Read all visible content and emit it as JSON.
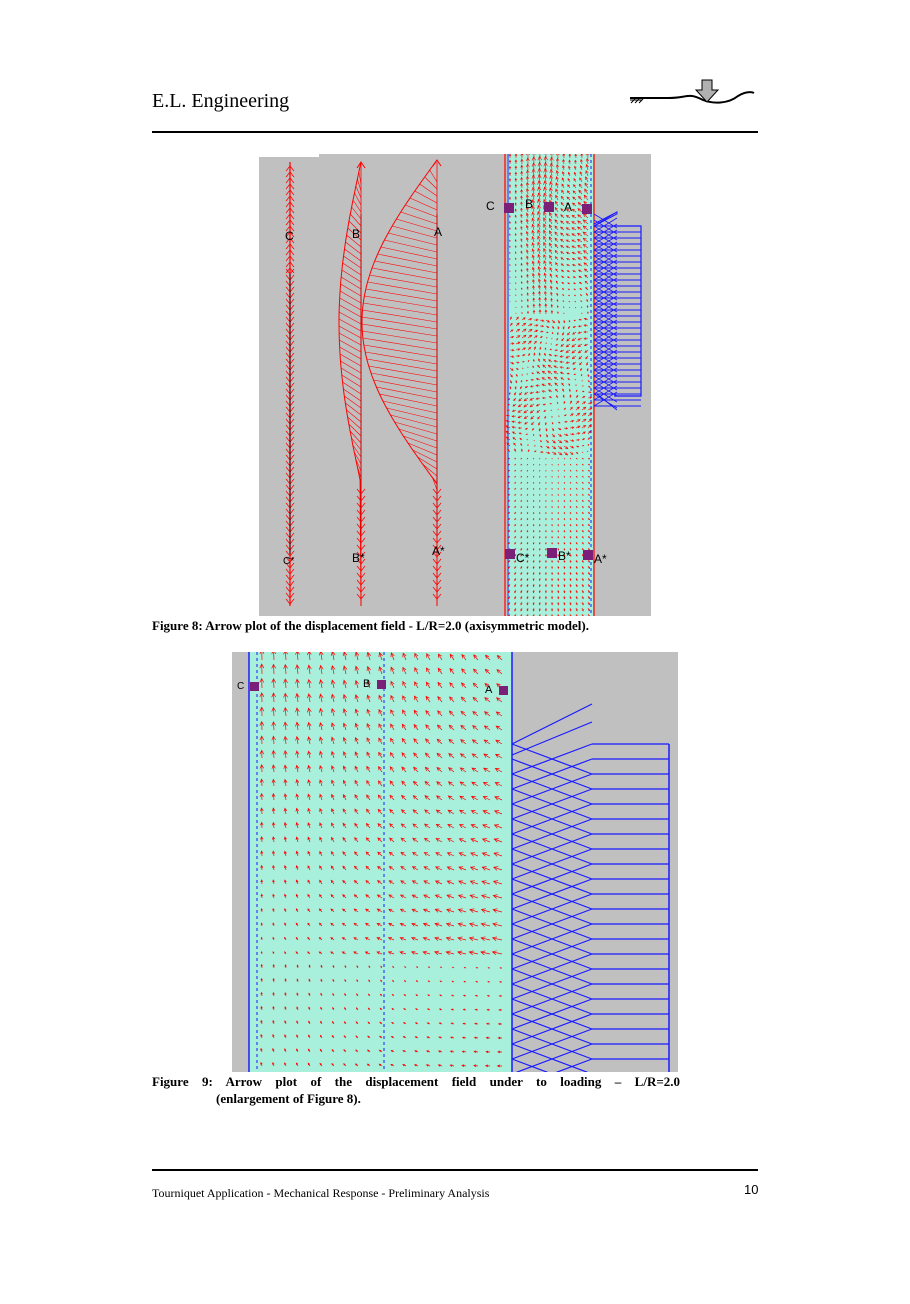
{
  "header": {
    "company": "E.L. Engineering"
  },
  "figure8": {
    "caption": "Figure 8: Arrow plot of the displacement field - L/R=2.0 (axisymmetric model).",
    "labels": {
      "C": "C",
      "B": "B",
      "A": "A",
      "C_star": "C*",
      "B_star": "B*",
      "A_star": "A*",
      "model_C": "C",
      "model_B": "B",
      "model_A": "A",
      "model_C_star": "C*",
      "model_B_star": "B*",
      "model_A_star": "A*"
    },
    "colors": {
      "background": "#c0c0c0",
      "arrows": "#ff0000",
      "cuff": "#1a1aff",
      "markers": "#7a2079",
      "tissue": "#a8f0dc"
    }
  },
  "figure9": {
    "caption_line1": "Figure 9: Arrow plot of the displacement field under to loading – L/R=2.0",
    "caption_line2": "(enlargement of Figure 8).",
    "labels": {
      "C": "C",
      "B": "B",
      "A": "A"
    }
  },
  "footer": {
    "text": "Tourniquet Application - Mechanical Response - Preliminary Analysis",
    "page_number": "10"
  }
}
